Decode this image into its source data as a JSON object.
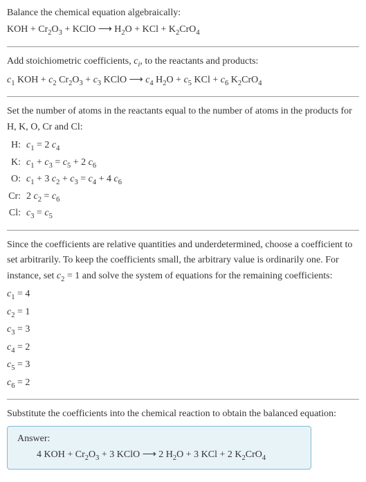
{
  "intro": {
    "title": "Balance the chemical equation algebraically:",
    "equation_html": "KOH + Cr<sub>2</sub>O<sub>3</sub> + KClO  ⟶  H<sub>2</sub>O + KCl + K<sub>2</sub>CrO<sub>4</sub>"
  },
  "step_add": {
    "text_html": "Add stoichiometric coefficients, <span class='ital'>c<sub>i</sub></span>, to the reactants and products:",
    "equation_html": "<span class='ital'>c</span><sub>1</sub> KOH + <span class='ital'>c</span><sub>2</sub> Cr<sub>2</sub>O<sub>3</sub> + <span class='ital'>c</span><sub>3</sub> KClO  ⟶  <span class='ital'>c</span><sub>4</sub> H<sub>2</sub>O + <span class='ital'>c</span><sub>5</sub> KCl + <span class='ital'>c</span><sub>6</sub> K<sub>2</sub>CrO<sub>4</sub>"
  },
  "step_set": {
    "text": "Set the number of atoms in the reactants equal to the number of atoms in the products for H, K, O, Cr and Cl:",
    "rows": [
      {
        "label": "H:",
        "body_html": "<span class='ital'>c</span><sub>1</sub> = 2 <span class='ital'>c</span><sub>4</sub>"
      },
      {
        "label": "K:",
        "body_html": "<span class='ital'>c</span><sub>1</sub> + <span class='ital'>c</span><sub>3</sub> = <span class='ital'>c</span><sub>5</sub> + 2 <span class='ital'>c</span><sub>6</sub>"
      },
      {
        "label": "O:",
        "body_html": "<span class='ital'>c</span><sub>1</sub> + 3 <span class='ital'>c</span><sub>2</sub> + <span class='ital'>c</span><sub>3</sub> = <span class='ital'>c</span><sub>4</sub> + 4 <span class='ital'>c</span><sub>6</sub>"
      },
      {
        "label": "Cr:",
        "body_html": "2 <span class='ital'>c</span><sub>2</sub> = <span class='ital'>c</span><sub>6</sub>"
      },
      {
        "label": "Cl:",
        "body_html": "<span class='ital'>c</span><sub>3</sub> = <span class='ital'>c</span><sub>5</sub>"
      }
    ]
  },
  "step_since": {
    "text_html": "Since the coefficients are relative quantities and underdetermined, choose a coefficient to set arbitrarily. To keep the coefficients small, the arbitrary value is ordinarily one. For instance, set <span class='ital'>c</span><sub>2</sub> = 1 and solve the system of equations for the remaining coefficients:",
    "coeffs": [
      "<span class='ital'>c</span><sub>1</sub> = 4",
      "<span class='ital'>c</span><sub>2</sub> = 1",
      "<span class='ital'>c</span><sub>3</sub> = 3",
      "<span class='ital'>c</span><sub>4</sub> = 2",
      "<span class='ital'>c</span><sub>5</sub> = 3",
      "<span class='ital'>c</span><sub>6</sub> = 2"
    ]
  },
  "step_sub": {
    "text": "Substitute the coefficients into the chemical reaction to obtain the balanced equation:"
  },
  "answer": {
    "title": "Answer:",
    "equation_html": "4 KOH + Cr<sub>2</sub>O<sub>3</sub> + 3 KClO  ⟶  2 H<sub>2</sub>O + 3 KCl + 2 K<sub>2</sub>CrO<sub>4</sub>",
    "box_bg": "#e8f3f8",
    "box_border": "#7fb8d4"
  }
}
